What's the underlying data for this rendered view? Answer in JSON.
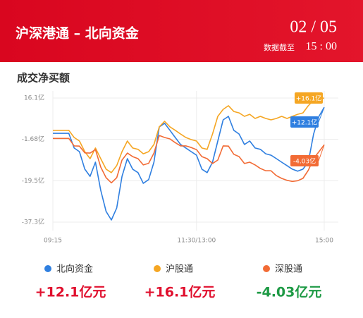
{
  "header": {
    "title": "沪深港通 – 北向资金",
    "date": "02 / 05",
    "note": "数据截至",
    "time": "15 : 00"
  },
  "chart_data": {
    "type": "line",
    "title": "成交净买额",
    "x": [
      0,
      5,
      10,
      15,
      20,
      25,
      30,
      35,
      40,
      45,
      50,
      55,
      60,
      65,
      70,
      75,
      80,
      85,
      90,
      95,
      100,
      105,
      110,
      115,
      120,
      125,
      130,
      135,
      140,
      145,
      150,
      155,
      160,
      165,
      170,
      175,
      180,
      185,
      190,
      195,
      200,
      205,
      210,
      215,
      220,
      225,
      230,
      235,
      240,
      245,
      250,
      255
    ],
    "xlim": [
      0,
      255
    ],
    "xticks": [
      {
        "value": 0,
        "label": "09:15"
      },
      {
        "value": 135,
        "label": "11:30/13:00"
      },
      {
        "value": 255,
        "label": "15:00"
      }
    ],
    "ylim": [
      -37.3,
      16.1
    ],
    "yticks": [
      {
        "value": 16.1,
        "label": "16.1亿"
      },
      {
        "value": -1.68,
        "label": "-1.68亿"
      },
      {
        "value": -19.5,
        "label": "-19.5亿"
      },
      {
        "value": -37.3,
        "label": "-37.3亿"
      }
    ],
    "grid": true,
    "series": [
      {
        "name": "北向资金",
        "color": "#2f7fe0",
        "total": "+12.1亿元",
        "total_color": "#e0102e",
        "end_label": "+12.1亿",
        "values": [
          0.9,
          0.9,
          0.9,
          0.9,
          -5.4,
          -7,
          -14.5,
          -17.6,
          -11.5,
          -23.6,
          -32.7,
          -36.4,
          -31.2,
          -17.6,
          -10,
          -14.5,
          -16,
          -20.6,
          -19,
          -11.5,
          3.7,
          5.2,
          2.2,
          -0.9,
          -3.9,
          -5.4,
          -7,
          -8.5,
          -14.5,
          -16,
          -11.5,
          -2.4,
          6.7,
          8.2,
          2.2,
          0.6,
          -3.9,
          -2.4,
          -5.4,
          -6,
          -7.9,
          -8.5,
          -10,
          -11.5,
          -13,
          -14.5,
          -15.4,
          -14.5,
          -11.5,
          0.6,
          8.2,
          12.1
        ]
      },
      {
        "name": "沪股通",
        "color": "#f5a623",
        "total": "+16.1亿元",
        "total_color": "#e0102e",
        "end_label": "+16.1亿",
        "values": [
          2.2,
          2.2,
          2.2,
          2.2,
          -0.9,
          -2.4,
          -7,
          -10,
          -5.4,
          -10,
          -14.5,
          -16,
          -13,
          -7,
          -2.4,
          -5.4,
          -6,
          -7.9,
          -7,
          -3.9,
          3.7,
          6.1,
          3.7,
          2.2,
          0.6,
          -0.9,
          -1.8,
          -2.4,
          -5.4,
          -6,
          0.6,
          8.2,
          11.2,
          12.8,
          10.3,
          9.7,
          8.2,
          9.1,
          7.3,
          8.2,
          7.3,
          6.7,
          7.3,
          8.2,
          7.3,
          8.2,
          9.1,
          9.7,
          12.8,
          15.2,
          15.8,
          16.1
        ]
      },
      {
        "name": "深股通",
        "color": "#f26b35",
        "total": "-4.03亿元",
        "total_color": "#1e9a45",
        "end_label": "-4.03亿",
        "values": [
          -1.3,
          -1.3,
          -1.3,
          -1.3,
          -4.5,
          -4.6,
          -7.5,
          -7.6,
          -6.1,
          -13.6,
          -18.2,
          -20.4,
          -18.2,
          -10.6,
          -7.6,
          -9.1,
          -10,
          -12.7,
          -12,
          -7.6,
          0,
          -0.9,
          -1.5,
          -3.1,
          -4.5,
          -4.5,
          -5.2,
          -6.1,
          -9.1,
          -10,
          -12.1,
          -10.6,
          -4.5,
          -4.6,
          -8.1,
          -9.1,
          -12.1,
          -11.5,
          -12.7,
          -14.2,
          -15.2,
          -15.2,
          -17.3,
          -18.5,
          -19.3,
          -19.8,
          -19.5,
          -18.5,
          -15,
          -10,
          -7,
          -4.03
        ]
      }
    ]
  }
}
